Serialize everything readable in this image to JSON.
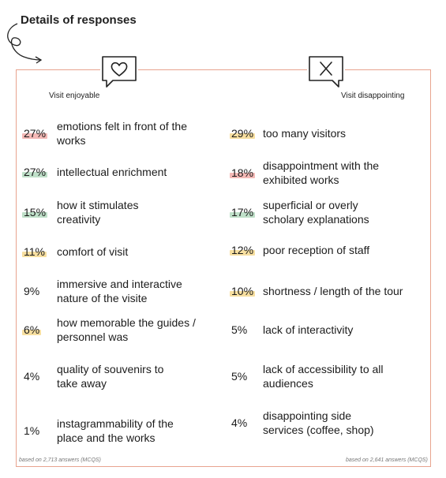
{
  "title": "Details of responses",
  "left": {
    "heading": "Visit enjoyable",
    "icon": "heart-speech-bubble-icon",
    "items": [
      {
        "pct": "27%",
        "label": "emotions felt in front of the works",
        "highlight": "#f4b9b6"
      },
      {
        "pct": "27%",
        "label": "intellectual enrichment",
        "highlight": "#bfe0c9"
      },
      {
        "pct": "15%",
        "label": "how it stimulates creativity",
        "highlight": "#bfe0c9"
      },
      {
        "pct": "11%",
        "label": "comfort of visit",
        "highlight": "#f7dfa0"
      },
      {
        "pct": "9%",
        "label": "immersive and interactive nature of the visite",
        "highlight": ""
      },
      {
        "pct": "6%",
        "label": "how memorable the guides / personnel was",
        "highlight": "#f7dfa0"
      },
      {
        "pct": "4%",
        "label": "quality of souvenirs to take away",
        "highlight": ""
      },
      {
        "pct": "1%",
        "label": "instagrammability of the place and the works",
        "highlight": ""
      }
    ],
    "footnote": "based on 2,713 answers (MCQS)"
  },
  "right": {
    "heading": "Visit disappointing",
    "icon": "x-speech-bubble-icon",
    "items": [
      {
        "pct": "29%",
        "label": "too many visitors",
        "highlight": "#f7dfa0"
      },
      {
        "pct": "18%",
        "label": "disappointment with the exhibited works",
        "highlight": "#f4b9b6"
      },
      {
        "pct": "17%",
        "label": "superficial or overly scholary explanations",
        "highlight": "#bfe0c9"
      },
      {
        "pct": "12%",
        "label": "poor reception of staff",
        "highlight": "#f7dfa0"
      },
      {
        "pct": "10%",
        "label": "shortness / length of the tour",
        "highlight": "#f7dfa0"
      },
      {
        "pct": "5%",
        "label": "lack of interactivity",
        "highlight": ""
      },
      {
        "pct": "5%",
        "label": "lack of accessibility to all audiences",
        "highlight": ""
      },
      {
        "pct": "4%",
        "label": "disappointing side services (coffee, shop)",
        "highlight": ""
      }
    ],
    "footnote": "based on 2,641 answers (MCQS)"
  }
}
